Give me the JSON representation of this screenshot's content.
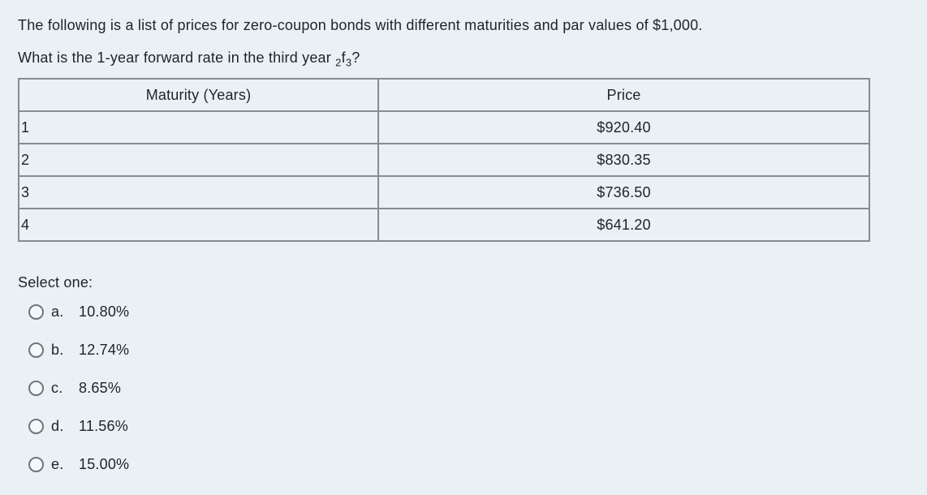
{
  "question": {
    "line1": "The following is a list of prices for zero-coupon bonds with different maturities and par values of $1,000.",
    "line2_prefix": "What is the 1-year forward rate in the third year ",
    "notation": {
      "sub_left": "2",
      "base": "f",
      "sub_right": "3"
    },
    "line2_suffix": "?"
  },
  "table": {
    "headers": [
      "Maturity (Years)",
      "Price"
    ],
    "rows": [
      {
        "maturity": "1",
        "price": "$920.40"
      },
      {
        "maturity": "2",
        "price": "$830.35"
      },
      {
        "maturity": "3",
        "price": "$736.50"
      },
      {
        "maturity": "4",
        "price": "$641.20"
      }
    ]
  },
  "prompt": "Select one:",
  "options": [
    {
      "letter": "a.",
      "label": "10.80%"
    },
    {
      "letter": "b.",
      "label": "12.74%"
    },
    {
      "letter": "c.",
      "label": "8.65%"
    },
    {
      "letter": "d.",
      "label": "11.56%"
    },
    {
      "letter": "e.",
      "label": "15.00%"
    }
  ],
  "colors": {
    "background": "#e9f1f4",
    "text": "#1e2327",
    "table_outer_border": "#26282b",
    "table_inner_border": "#878b8e",
    "radio_border": "#6f767b"
  }
}
